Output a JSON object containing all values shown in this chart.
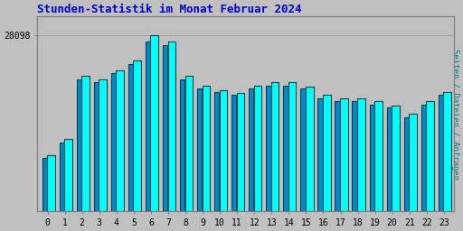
{
  "title": "Stunden-Statistik im Monat Februar 2024",
  "title_color": "#0000CC",
  "title_fontsize": 9,
  "ylabel": "Seiten / Dateien / Anfragen",
  "ylabel_color": "#008080",
  "ylabel_fontsize": 6.5,
  "categories": [
    0,
    1,
    2,
    3,
    4,
    5,
    6,
    7,
    8,
    9,
    10,
    11,
    12,
    13,
    14,
    15,
    16,
    17,
    18,
    19,
    20,
    21,
    22,
    23
  ],
  "bar_vals_left": [
    8500,
    11000,
    21000,
    20500,
    22000,
    23500,
    27000,
    26500,
    21000,
    19500,
    19000,
    18500,
    19500,
    20000,
    20000,
    19500,
    18000,
    17500,
    17500,
    17000,
    16500,
    15000,
    17000,
    18500
  ],
  "bar_vals_right": [
    9000,
    11500,
    21500,
    21000,
    22500,
    24000,
    28098,
    27000,
    21500,
    20000,
    19200,
    18800,
    20000,
    20500,
    20500,
    19800,
    18500,
    18000,
    18000,
    17500,
    16800,
    15500,
    17500,
    19000
  ],
  "bar_color_left": "#0088CC",
  "bar_color_right": "#00FFFF",
  "bar_edge_color": "#004444",
  "bar_edge_width": 0.8,
  "background_color": "#C0C0C0",
  "plot_bg_color": "#C0C0C0",
  "grid_color": "#A0A0A0",
  "ytick_label": "28098",
  "ytick_value": 28098,
  "ylim_min": 0,
  "ylim_max": 31000,
  "tick_fontsize": 7,
  "tick_color": "#000000"
}
